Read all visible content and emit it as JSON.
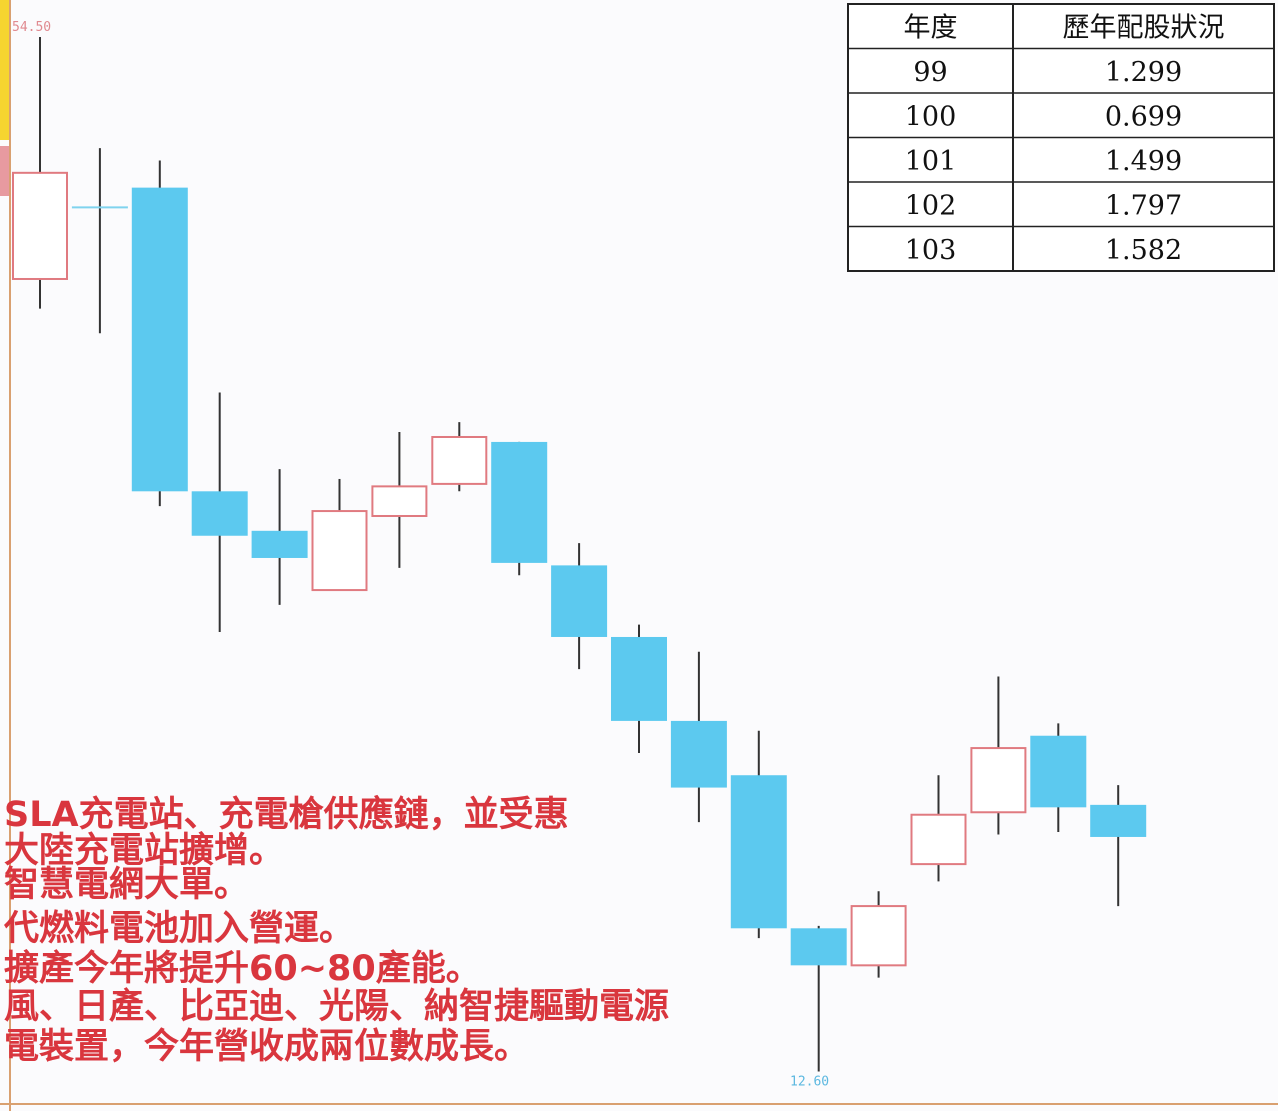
{
  "chart_data": {
    "type": "candlestick",
    "open": [
      44.7,
      47.6,
      48.4,
      36.1,
      34.5,
      32.1,
      35.1,
      36.4,
      38.1,
      33.1,
      30.2,
      26.8,
      24.6,
      18.4,
      16.9,
      21.0,
      23.1,
      26.2,
      23.4
    ],
    "high": [
      54.5,
      50.0,
      49.5,
      40.1,
      37.0,
      36.6,
      38.5,
      38.9,
      38.1,
      34.0,
      30.7,
      29.6,
      26.4,
      18.5,
      19.9,
      24.6,
      28.6,
      26.7,
      24.2
    ],
    "low": [
      43.5,
      42.5,
      35.5,
      30.4,
      31.5,
      32.1,
      33.0,
      36.1,
      32.7,
      28.9,
      25.5,
      22.7,
      18.0,
      12.6,
      16.4,
      20.3,
      22.2,
      22.3,
      19.3
    ],
    "close": [
      49.0,
      47.6,
      36.1,
      34.3,
      33.4,
      35.3,
      36.3,
      38.3,
      33.2,
      30.2,
      26.8,
      24.1,
      18.4,
      16.9,
      19.3,
      23.0,
      25.7,
      23.3,
      22.1
    ],
    "up_color": "#e07a80",
    "down_color": "#5cc9ef",
    "flat_color": "#7fd3ee",
    "ylim": [
      11,
      56
    ],
    "max_label": {
      "value": 54.5,
      "label": "54.50"
    },
    "min_label": {
      "value": 12.6,
      "label": "12.60"
    }
  },
  "table": {
    "header": [
      "年度",
      "歷年配股狀況"
    ],
    "rows": [
      [
        "99",
        "1.299"
      ],
      [
        "100",
        "0.699"
      ],
      [
        "101",
        "1.499"
      ],
      [
        "102",
        "1.797"
      ],
      [
        "103",
        "1.582"
      ]
    ]
  },
  "notes": [
    "SLA充電站、充電槍供應鏈，並受惠",
    "大陸充電站擴增。",
    "智慧電網大單。",
    "代燃料電池加入營運。",
    "擴產今年將提升60~80產能。",
    "風、日產、比亞迪、光陽、納智捷驅動電源",
    "電裝置，今年營收成兩位數成長。"
  ]
}
